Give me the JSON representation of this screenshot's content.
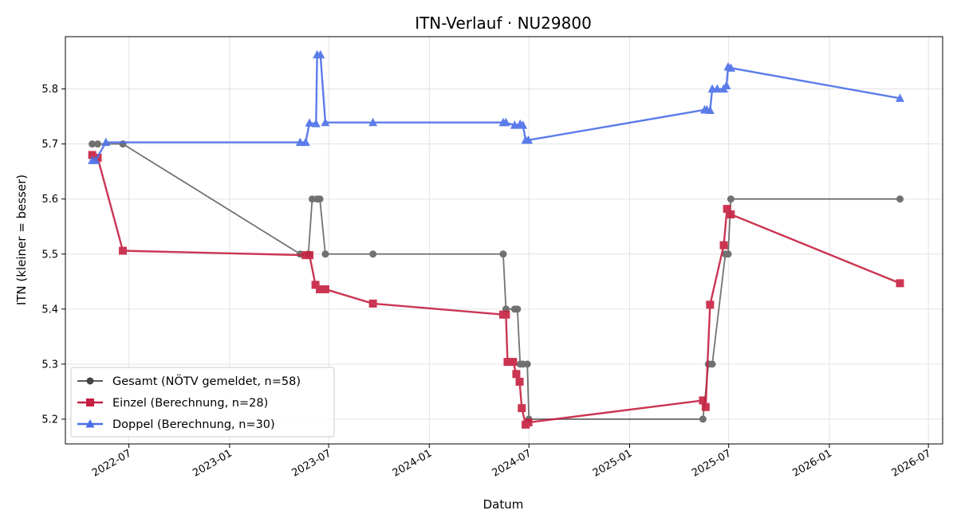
{
  "chart_data": {
    "type": "line",
    "title": "ITN-Verlauf · NU29800",
    "xlabel": "Datum",
    "ylabel": "ITN  (kleiner = besser)",
    "x_is_date": true,
    "xlim": [
      "2022-03-07",
      "2026-07-27"
    ],
    "ylim": [
      5.155,
      5.895
    ],
    "x_ticks": [
      "2022-07-01",
      "2023-01-01",
      "2023-07-01",
      "2024-01-01",
      "2024-07-01",
      "2025-01-01",
      "2025-07-01",
      "2026-01-01",
      "2026-07-01"
    ],
    "x_tick_labels": [
      "2022-07",
      "2023-01",
      "2023-07",
      "2024-01",
      "2024-07",
      "2025-01",
      "2025-07",
      "2026-01",
      "2026-07"
    ],
    "y_ticks": [
      5.2,
      5.3,
      5.4,
      5.5,
      5.6,
      5.7,
      5.8
    ],
    "y_tick_labels": [
      "5.2",
      "5.3",
      "5.4",
      "5.5",
      "5.6",
      "5.7",
      "5.8"
    ],
    "grid": true,
    "legend_position": "lower-left",
    "series": [
      {
        "name": "Gesamt (NÖTV gemeldet, n=58)",
        "color": "#444444",
        "marker": "circle",
        "points": [
          [
            "2022-04-25",
            5.7
          ],
          [
            "2022-05-05",
            5.7
          ],
          [
            "2022-06-20",
            5.7
          ],
          [
            "2023-05-10",
            5.5
          ],
          [
            "2023-05-25",
            5.5
          ],
          [
            "2023-06-01",
            5.6
          ],
          [
            "2023-06-10",
            5.6
          ],
          [
            "2023-06-15",
            5.6
          ],
          [
            "2023-06-25",
            5.5
          ],
          [
            "2023-09-20",
            5.5
          ],
          [
            "2024-05-15",
            5.5
          ],
          [
            "2024-05-20",
            5.4
          ],
          [
            "2024-06-05",
            5.4
          ],
          [
            "2024-06-10",
            5.4
          ],
          [
            "2024-06-15",
            5.3
          ],
          [
            "2024-06-20",
            5.3
          ],
          [
            "2024-06-28",
            5.3
          ],
          [
            "2024-07-01",
            5.2
          ],
          [
            "2025-05-15",
            5.2
          ],
          [
            "2025-05-25",
            5.3
          ],
          [
            "2025-06-01",
            5.3
          ],
          [
            "2025-06-25",
            5.5
          ],
          [
            "2025-06-30",
            5.5
          ],
          [
            "2025-07-05",
            5.6
          ],
          [
            "2026-05-10",
            5.6
          ]
        ]
      },
      {
        "name": "Einzel (Berechnung, n=28)",
        "color": "#c62040",
        "marker": "square",
        "points": [
          [
            "2022-04-25",
            5.68
          ],
          [
            "2022-05-05",
            5.675
          ],
          [
            "2022-06-20",
            5.506
          ],
          [
            "2023-05-20",
            5.498
          ],
          [
            "2023-05-27",
            5.498
          ],
          [
            "2023-06-07",
            5.444
          ],
          [
            "2023-06-15",
            5.436
          ],
          [
            "2023-06-25",
            5.436
          ],
          [
            "2023-09-20",
            5.41
          ],
          [
            "2024-05-15",
            5.39
          ],
          [
            "2024-05-20",
            5.39
          ],
          [
            "2024-05-23",
            5.304
          ],
          [
            "2024-06-02",
            5.304
          ],
          [
            "2024-06-08",
            5.282
          ],
          [
            "2024-06-14",
            5.268
          ],
          [
            "2024-06-18",
            5.22
          ],
          [
            "2024-06-25",
            5.19
          ],
          [
            "2024-06-30",
            5.194
          ],
          [
            "2025-05-15",
            5.234
          ],
          [
            "2025-05-20",
            5.222
          ],
          [
            "2025-05-28",
            5.408
          ],
          [
            "2025-06-22",
            5.516
          ],
          [
            "2025-06-28",
            5.582
          ],
          [
            "2025-07-05",
            5.572
          ],
          [
            "2026-05-10",
            5.447
          ]
        ]
      },
      {
        "name": "Doppel (Berechnung, n=30)",
        "color": "#4a6ee8",
        "marker": "triangle",
        "points": [
          [
            "2022-04-25",
            5.67
          ],
          [
            "2022-05-01",
            5.67
          ],
          [
            "2022-05-20",
            5.703
          ],
          [
            "2023-05-10",
            5.703
          ],
          [
            "2023-05-20",
            5.703
          ],
          [
            "2023-05-27",
            5.738
          ],
          [
            "2023-06-08",
            5.737
          ],
          [
            "2023-06-10",
            5.862
          ],
          [
            "2023-06-16",
            5.862
          ],
          [
            "2023-06-25",
            5.739
          ],
          [
            "2023-09-20",
            5.739
          ],
          [
            "2024-05-15",
            5.739
          ],
          [
            "2024-05-20",
            5.739
          ],
          [
            "2024-06-05",
            5.734
          ],
          [
            "2024-06-15",
            5.736
          ],
          [
            "2024-06-20",
            5.734
          ],
          [
            "2024-06-25",
            5.707
          ],
          [
            "2024-06-30",
            5.707
          ],
          [
            "2025-05-18",
            5.762
          ],
          [
            "2025-05-22",
            5.762
          ],
          [
            "2025-05-28",
            5.761
          ],
          [
            "2025-06-01",
            5.8
          ],
          [
            "2025-06-10",
            5.8
          ],
          [
            "2025-06-22",
            5.8
          ],
          [
            "2025-06-27",
            5.806
          ],
          [
            "2025-06-30",
            5.84
          ],
          [
            "2025-07-05",
            5.838
          ],
          [
            "2026-05-10",
            5.783
          ]
        ]
      }
    ]
  }
}
